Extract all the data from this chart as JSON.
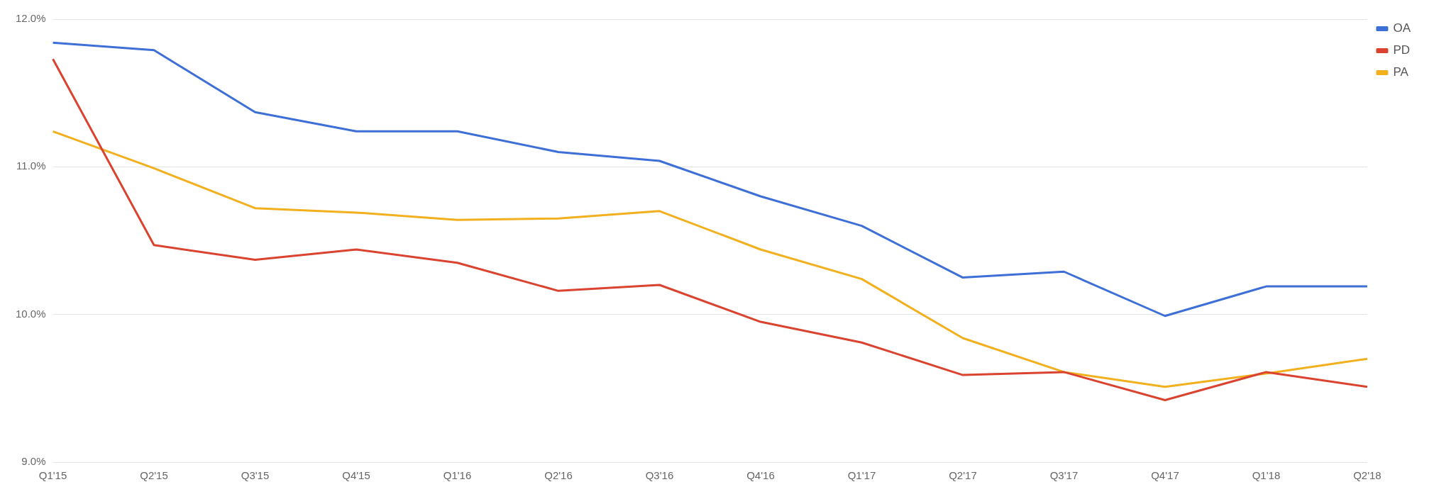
{
  "chart_data": {
    "type": "line",
    "categories": [
      "Q1'15",
      "Q2'15",
      "Q3'15",
      "Q4'15",
      "Q1'16",
      "Q2'16",
      "Q3'16",
      "Q4'16",
      "Q1'17",
      "Q2'17",
      "Q3'17",
      "Q4'17",
      "Q1'18",
      "Q2'18"
    ],
    "series": [
      {
        "name": "OA",
        "color": "#3d6fd6",
        "values": [
          11.84,
          11.79,
          11.37,
          11.24,
          11.24,
          11.1,
          11.04,
          10.8,
          10.6,
          10.25,
          10.29,
          9.99,
          10.19,
          10.19
        ]
      },
      {
        "name": "PD",
        "color": "#d9432f",
        "values": [
          11.73,
          10.47,
          10.37,
          10.44,
          10.35,
          10.16,
          10.2,
          9.95,
          9.81,
          9.59,
          9.61,
          9.42,
          9.61,
          9.51
        ]
      },
      {
        "name": "PA",
        "color": "#f2b01e",
        "values": [
          11.24,
          10.99,
          10.72,
          10.69,
          10.64,
          10.65,
          10.7,
          10.44,
          10.24,
          9.84,
          9.61,
          9.51,
          9.6,
          9.7
        ]
      }
    ],
    "ylim": [
      9,
      12
    ],
    "yticks": [
      {
        "value": 9,
        "label": "9.0%"
      },
      {
        "value": 10,
        "label": "10.0%"
      },
      {
        "value": 11,
        "label": "11.0%"
      },
      {
        "value": 12,
        "label": "12.0%"
      }
    ],
    "grid": "y",
    "legend": "top right",
    "marker": "none",
    "line_style": "solid"
  }
}
